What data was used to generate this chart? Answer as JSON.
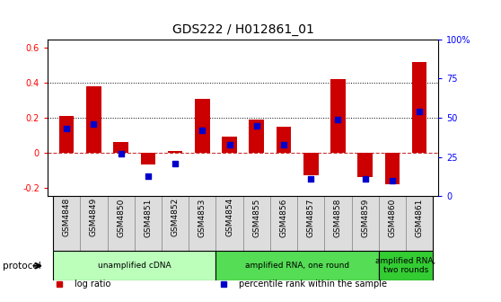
{
  "title": "GDS222 / H012861_01",
  "samples": [
    "GSM4848",
    "GSM4849",
    "GSM4850",
    "GSM4851",
    "GSM4852",
    "GSM4853",
    "GSM4854",
    "GSM4855",
    "GSM4856",
    "GSM4857",
    "GSM4858",
    "GSM4859",
    "GSM4860",
    "GSM4861"
  ],
  "log_ratio": [
    0.21,
    0.38,
    0.06,
    -0.07,
    0.01,
    0.31,
    0.09,
    0.19,
    0.15,
    -0.13,
    0.42,
    -0.14,
    -0.18,
    0.52
  ],
  "pct_rank": [
    0.43,
    0.46,
    0.27,
    0.13,
    0.21,
    0.42,
    0.33,
    0.45,
    0.33,
    0.11,
    0.49,
    0.11,
    0.1,
    0.54
  ],
  "bar_color": "#cc0000",
  "dot_color": "#0000cc",
  "ylim_left": [
    -0.25,
    0.65
  ],
  "ylim_right": [
    0.0,
    1.0
  ],
  "yticks_left": [
    -0.2,
    0.0,
    0.2,
    0.4,
    0.6
  ],
  "yticks_right": [
    0.0,
    0.25,
    0.5,
    0.75,
    1.0
  ],
  "ytick_labels_left": [
    "-0.2",
    "0",
    "0.2",
    "0.4",
    "0.6"
  ],
  "ytick_labels_right": [
    "0",
    "25",
    "50",
    "75",
    "100%"
  ],
  "hlines": [
    0.2,
    0.4
  ],
  "protocol_groups": [
    {
      "label": "unamplified cDNA",
      "start": 0,
      "end": 5,
      "color": "#bbffbb"
    },
    {
      "label": "amplified RNA, one round",
      "start": 6,
      "end": 11,
      "color": "#55dd55"
    },
    {
      "label": "amplified RNA,\ntwo rounds",
      "start": 12,
      "end": 13,
      "color": "#33cc33"
    }
  ],
  "legend_items": [
    {
      "label": "log ratio",
      "color": "#cc0000"
    },
    {
      "label": "percentile rank within the sample",
      "color": "#0000cc"
    }
  ],
  "protocol_label": "protocol",
  "background_color": "#ffffff",
  "zero_line_color": "#cc3333",
  "sample_bg_color": "#dddddd",
  "title_fontsize": 10,
  "bar_width": 0.55
}
